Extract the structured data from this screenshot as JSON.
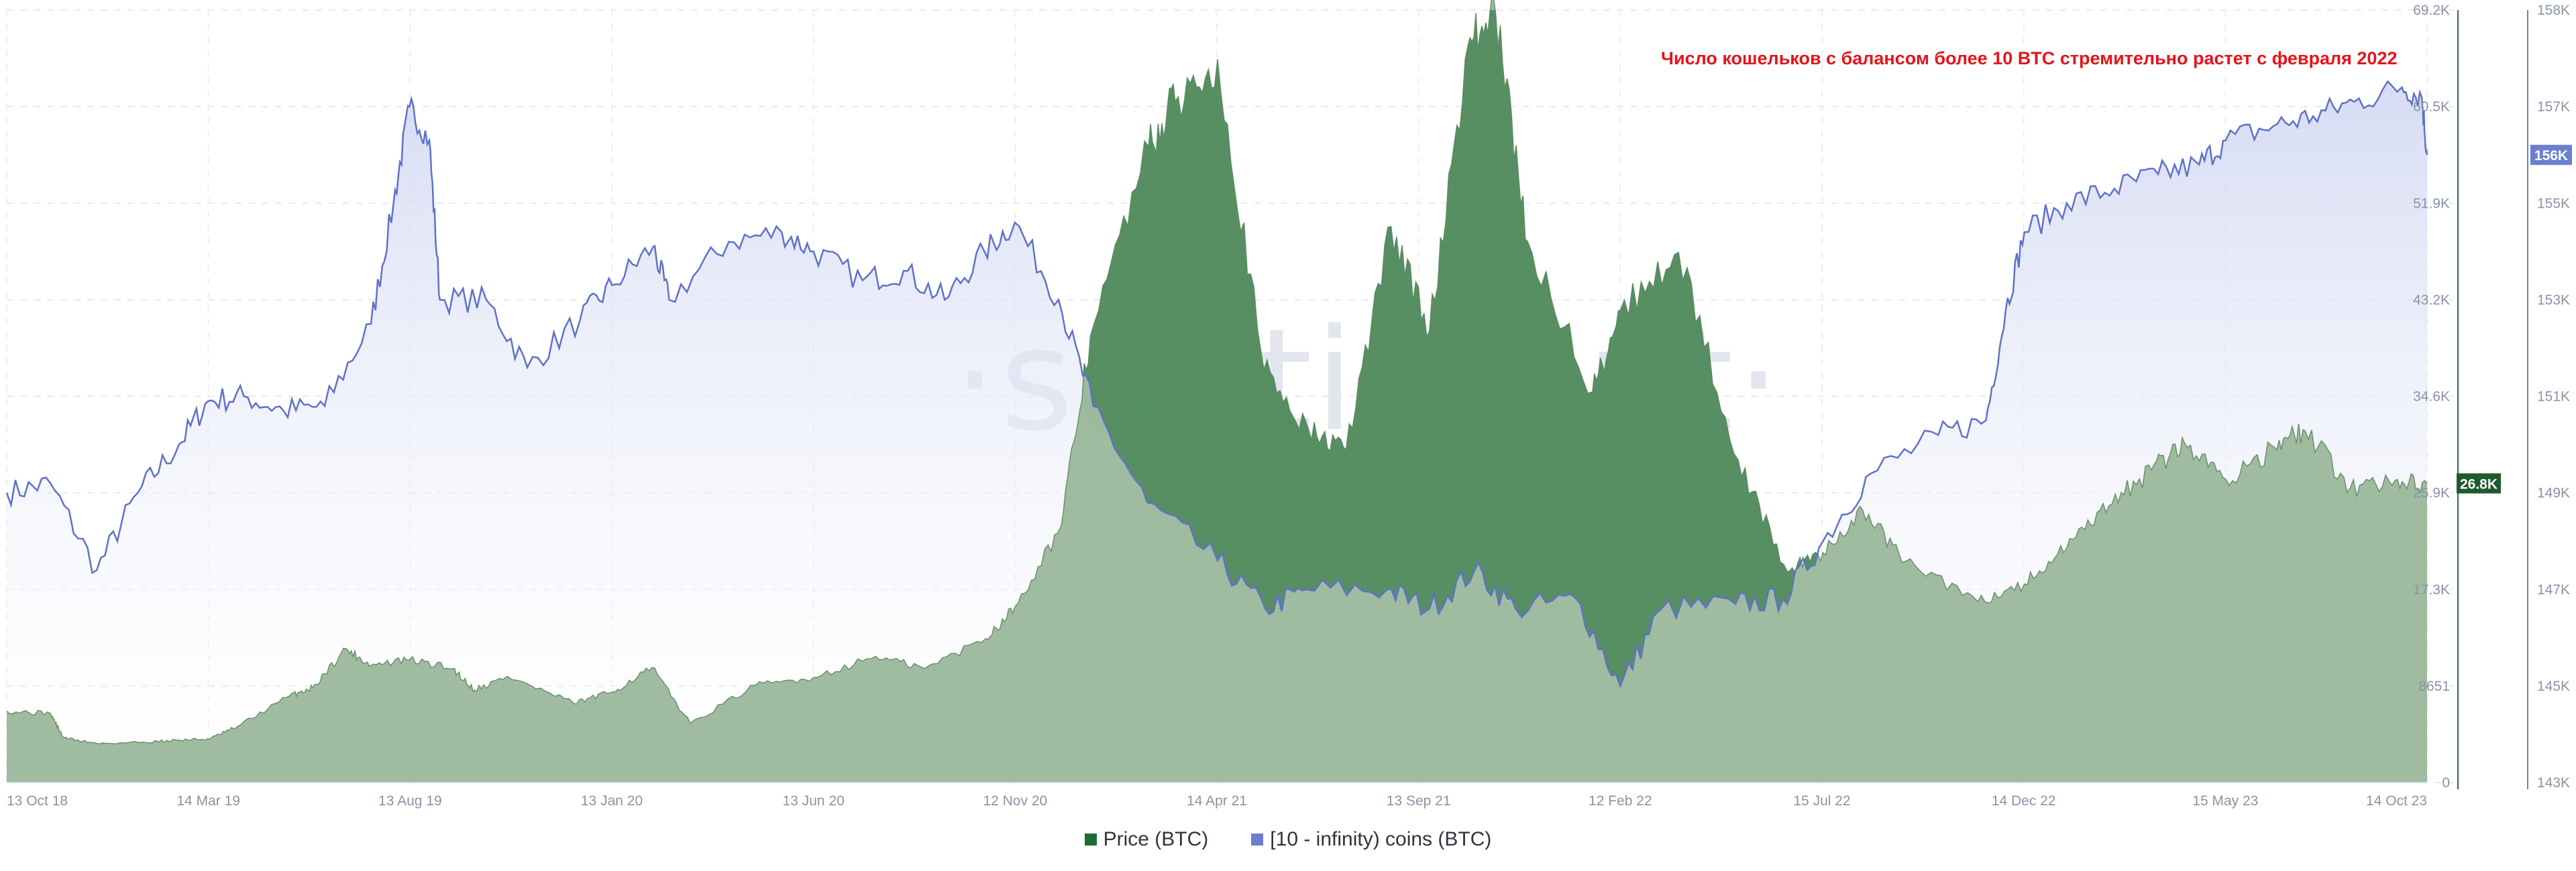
{
  "chart_data": {
    "type": "area",
    "title": "",
    "annotation": "Число кошельков с балансом более 10 BTC стремительно растет с февраля 2022",
    "watermark": "·santiment·",
    "x_ticks": [
      "13 Oct 18",
      "14 Mar 19",
      "13 Aug 19",
      "13 Jan 20",
      "13 Jun 20",
      "12 Nov 20",
      "14 Apr 21",
      "13 Sep 21",
      "12 Feb 22",
      "15 Jul 22",
      "14 Dec 22",
      "15 May 23",
      "14 Oct 23"
    ],
    "x_range": [
      "2018-10-13",
      "2023-10-14"
    ],
    "y_left": {
      "name": "Price (BTC)",
      "ticks": [
        "0",
        "8651",
        "17.3K",
        "25.9K",
        "34.6K",
        "43.2K",
        "51.9K",
        "60.5K",
        "69.2K"
      ],
      "range": [
        0,
        69200
      ],
      "current_label": "26.8K"
    },
    "y_right": {
      "name": "[10 - infinity) coins (BTC)",
      "ticks": [
        "143K",
        "145K",
        "147K",
        "149K",
        "151K",
        "153K",
        "155K",
        "157K",
        "158K"
      ],
      "range": [
        143000,
        159000
      ],
      "current_label": "156K"
    },
    "grid": true,
    "legend_position": "bottom-center",
    "series": [
      {
        "name": "Price (BTC)",
        "color": "#2f6b3f",
        "axis": "left",
        "points": [
          [
            "2018-10-13",
            6400
          ],
          [
            "2018-11-15",
            6200
          ],
          [
            "2018-11-25",
            4000
          ],
          [
            "2018-12-20",
            3500
          ],
          [
            "2019-01-20",
            3600
          ],
          [
            "2019-02-20",
            3800
          ],
          [
            "2019-03-15",
            3900
          ],
          [
            "2019-04-05",
            5000
          ],
          [
            "2019-05-15",
            7800
          ],
          [
            "2019-06-01",
            8500
          ],
          [
            "2019-06-26",
            12000
          ],
          [
            "2019-07-15",
            10500
          ],
          [
            "2019-08-13",
            11000
          ],
          [
            "2019-09-15",
            10200
          ],
          [
            "2019-10-01",
            8300
          ],
          [
            "2019-10-26",
            9500
          ],
          [
            "2019-12-15",
            7100
          ],
          [
            "2020-01-13",
            8100
          ],
          [
            "2020-02-12",
            10300
          ],
          [
            "2020-03-12",
            5300
          ],
          [
            "2020-04-30",
            8700
          ],
          [
            "2020-06-13",
            9400
          ],
          [
            "2020-07-30",
            11300
          ],
          [
            "2020-09-05",
            10200
          ],
          [
            "2020-10-21",
            12900
          ],
          [
            "2020-11-12",
            15700
          ],
          [
            "2020-12-17",
            23000
          ],
          [
            "2021-01-08",
            40000
          ],
          [
            "2021-02-21",
            57000
          ],
          [
            "2021-03-13",
            61000
          ],
          [
            "2021-04-14",
            64800
          ],
          [
            "2021-05-19",
            37000
          ],
          [
            "2021-06-22",
            31500
          ],
          [
            "2021-07-20",
            29800
          ],
          [
            "2021-08-23",
            49800
          ],
          [
            "2021-09-21",
            40500
          ],
          [
            "2021-10-20",
            66000
          ],
          [
            "2021-11-10",
            68800
          ],
          [
            "2021-12-04",
            48500
          ],
          [
            "2022-01-22",
            35000
          ],
          [
            "2022-02-12",
            42300
          ],
          [
            "2022-03-28",
            47500
          ],
          [
            "2022-05-12",
            28900
          ],
          [
            "2022-06-18",
            18900
          ],
          [
            "2022-07-15",
            20600
          ],
          [
            "2022-08-14",
            24400
          ],
          [
            "2022-09-15",
            19800
          ],
          [
            "2022-11-09",
            16200
          ],
          [
            "2022-12-14",
            17800
          ],
          [
            "2023-01-15",
            21000
          ],
          [
            "2023-02-16",
            24800
          ],
          [
            "2023-03-20",
            28000
          ],
          [
            "2023-04-14",
            30400
          ],
          [
            "2023-05-15",
            27200
          ],
          [
            "2023-06-21",
            30000
          ],
          [
            "2023-07-14",
            31500
          ],
          [
            "2023-08-17",
            26400
          ],
          [
            "2023-09-20",
            27100
          ],
          [
            "2023-10-14",
            26800
          ]
        ]
      },
      {
        "name": "[10 - infinity) coins (BTC)",
        "color": "#6b7fcf",
        "axis": "right",
        "points": [
          [
            "2018-10-13",
            149000
          ],
          [
            "2018-11-15",
            149200
          ],
          [
            "2018-12-20",
            147400
          ],
          [
            "2019-01-20",
            149000
          ],
          [
            "2019-02-20",
            150000
          ],
          [
            "2019-03-14",
            150900
          ],
          [
            "2019-04-10",
            151000
          ],
          [
            "2019-05-10",
            150700
          ],
          [
            "2019-06-10",
            150800
          ],
          [
            "2019-07-15",
            152500
          ],
          [
            "2019-08-01",
            155000
          ],
          [
            "2019-08-13",
            157000
          ],
          [
            "2019-08-28",
            156300
          ],
          [
            "2019-09-05",
            153000
          ],
          [
            "2019-10-10",
            153000
          ],
          [
            "2019-11-10",
            151600
          ],
          [
            "2019-12-20",
            152600
          ],
          [
            "2020-01-13",
            153300
          ],
          [
            "2020-02-13",
            154100
          ],
          [
            "2020-02-25",
            153000
          ],
          [
            "2020-04-10",
            154200
          ],
          [
            "2020-05-20",
            154400
          ],
          [
            "2020-06-13",
            154000
          ],
          [
            "2020-07-20",
            153400
          ],
          [
            "2020-08-20",
            153600
          ],
          [
            "2020-09-20",
            153000
          ],
          [
            "2020-10-20",
            154000
          ],
          [
            "2020-11-12",
            154600
          ],
          [
            "2020-12-15",
            153000
          ],
          [
            "2021-01-10",
            150800
          ],
          [
            "2021-02-20",
            148800
          ],
          [
            "2021-04-14",
            147600
          ],
          [
            "2021-05-20",
            146600
          ],
          [
            "2021-06-20",
            147000
          ],
          [
            "2021-08-20",
            147000
          ],
          [
            "2021-09-21",
            146600
          ],
          [
            "2021-10-25",
            147400
          ],
          [
            "2021-11-25",
            146600
          ],
          [
            "2022-01-10",
            146800
          ],
          [
            "2022-02-12",
            145000
          ],
          [
            "2022-03-15",
            146600
          ],
          [
            "2022-05-10",
            146700
          ],
          [
            "2022-06-15",
            146800
          ],
          [
            "2022-07-15",
            148000
          ],
          [
            "2022-08-20",
            149400
          ],
          [
            "2022-10-10",
            150200
          ],
          [
            "2022-11-15",
            150500
          ],
          [
            "2022-11-30",
            152800
          ],
          [
            "2022-12-14",
            154400
          ],
          [
            "2023-01-15",
            155000
          ],
          [
            "2023-02-20",
            155300
          ],
          [
            "2023-03-25",
            155600
          ],
          [
            "2023-04-25",
            155800
          ],
          [
            "2023-05-15",
            156300
          ],
          [
            "2023-06-20",
            156600
          ],
          [
            "2023-07-20",
            156800
          ],
          [
            "2023-08-20",
            157100
          ],
          [
            "2023-09-25",
            157400
          ],
          [
            "2023-10-10",
            157200
          ],
          [
            "2023-10-14",
            156000
          ]
        ]
      }
    ]
  },
  "legend": {
    "price": {
      "label": "Price (BTC)",
      "color": "#1f6b35"
    },
    "coins": {
      "label": "[10 - infinity) coins (BTC)",
      "color": "#6b7fcf"
    }
  }
}
